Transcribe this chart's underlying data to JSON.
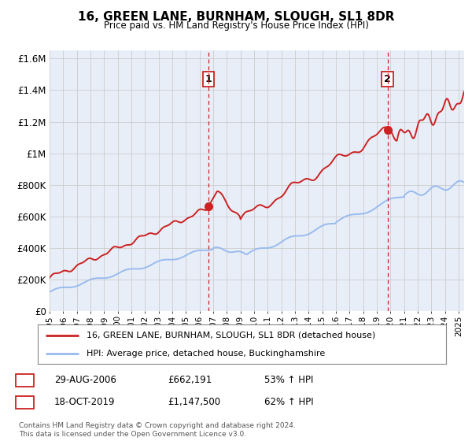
{
  "title": "16, GREEN LANE, BURNHAM, SLOUGH, SL1 8DR",
  "subtitle": "Price paid vs. HM Land Registry's House Price Index (HPI)",
  "ylabel_ticks": [
    "£0",
    "£200K",
    "£400K",
    "£600K",
    "£800K",
    "£1M",
    "£1.2M",
    "£1.4M",
    "£1.6M"
  ],
  "ytick_values": [
    0,
    200000,
    400000,
    600000,
    800000,
    1000000,
    1200000,
    1400000,
    1600000
  ],
  "ylim": [
    0,
    1650000
  ],
  "xlim_start": 1995.0,
  "xlim_end": 2025.4,
  "red_line_color": "#cc2222",
  "blue_line_color": "#99bbee",
  "dashed_line_color": "#cc2222",
  "chart_bg_color": "#e8eef8",
  "marker1_x": 2006.65,
  "marker1_y": 662191,
  "marker2_x": 2019.79,
  "marker2_y": 1147500,
  "legend_red_label": "16, GREEN LANE, BURNHAM, SLOUGH, SL1 8DR (detached house)",
  "legend_blue_label": "HPI: Average price, detached house, Buckinghamshire",
  "sale1_date": "29-AUG-2006",
  "sale1_price": "£662,191",
  "sale1_hpi": "53% ↑ HPI",
  "sale2_date": "18-OCT-2019",
  "sale2_price": "£1,147,500",
  "sale2_hpi": "62% ↑ HPI",
  "footer": "Contains HM Land Registry data © Crown copyright and database right 2024.\nThis data is licensed under the Open Government Licence v3.0.",
  "background_color": "#ffffff",
  "grid_color": "#cccccc"
}
